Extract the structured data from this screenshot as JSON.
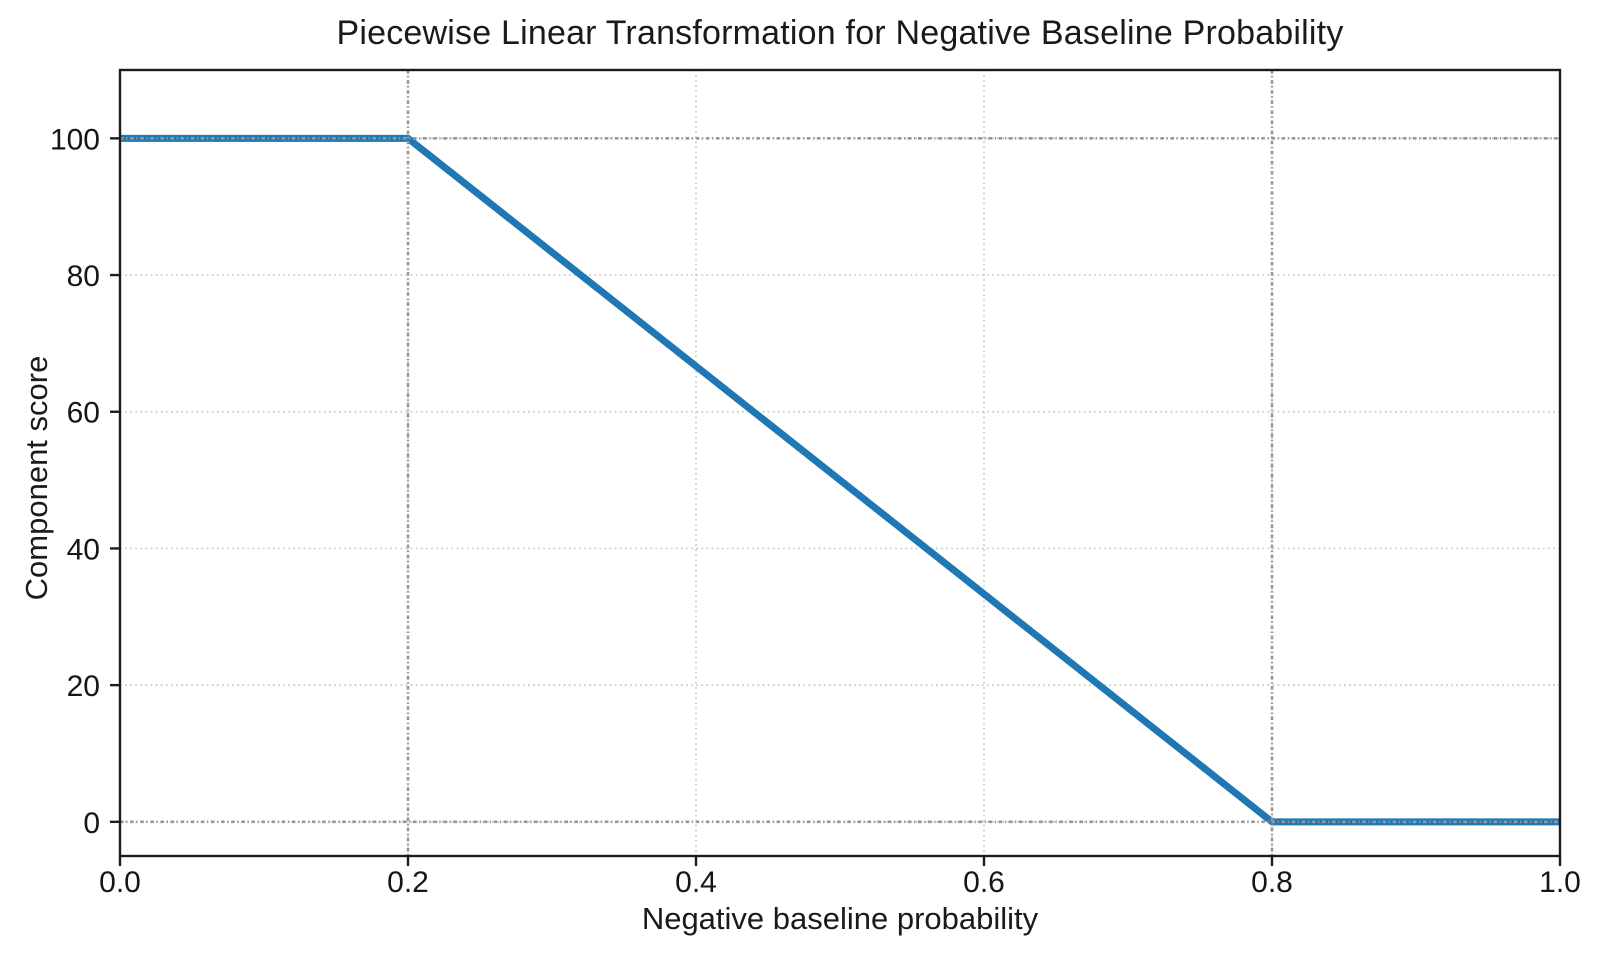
{
  "chart_data": {
    "type": "line",
    "title": "Piecewise Linear Transformation for Negative Baseline Probability",
    "xlabel": "Negative baseline probability",
    "ylabel": "Component score",
    "xlim": [
      0,
      1
    ],
    "ylim": [
      -5,
      110
    ],
    "xticks": [
      0,
      0.2,
      0.4,
      0.6,
      0.8,
      1
    ],
    "xtick_labels": [
      "0.0",
      "0.2",
      "0.4",
      "0.6",
      "0.8",
      "1.0"
    ],
    "yticks": [
      0,
      20,
      40,
      60,
      80,
      100
    ],
    "ytick_labels": [
      "0",
      "20",
      "40",
      "60",
      "80",
      "100"
    ],
    "grid": {
      "show": true,
      "style": "dotted",
      "color": "#c8c8c8"
    },
    "series": [
      {
        "color": "#1f77b4",
        "linewidth": 7,
        "x": [
          0.0,
          0.2,
          0.8,
          1.0
        ],
        "y": [
          100,
          100,
          0,
          0
        ]
      }
    ],
    "reference_lines": {
      "style": "dash-dot",
      "color": "#979797",
      "vertical_x": [
        0.2,
        0.8
      ],
      "horizontal_y": [
        100,
        0
      ]
    },
    "legend": {
      "visible": false
    },
    "background": "#ffffff",
    "axis_color": "#1c1c1c",
    "text_color": "#161616"
  }
}
